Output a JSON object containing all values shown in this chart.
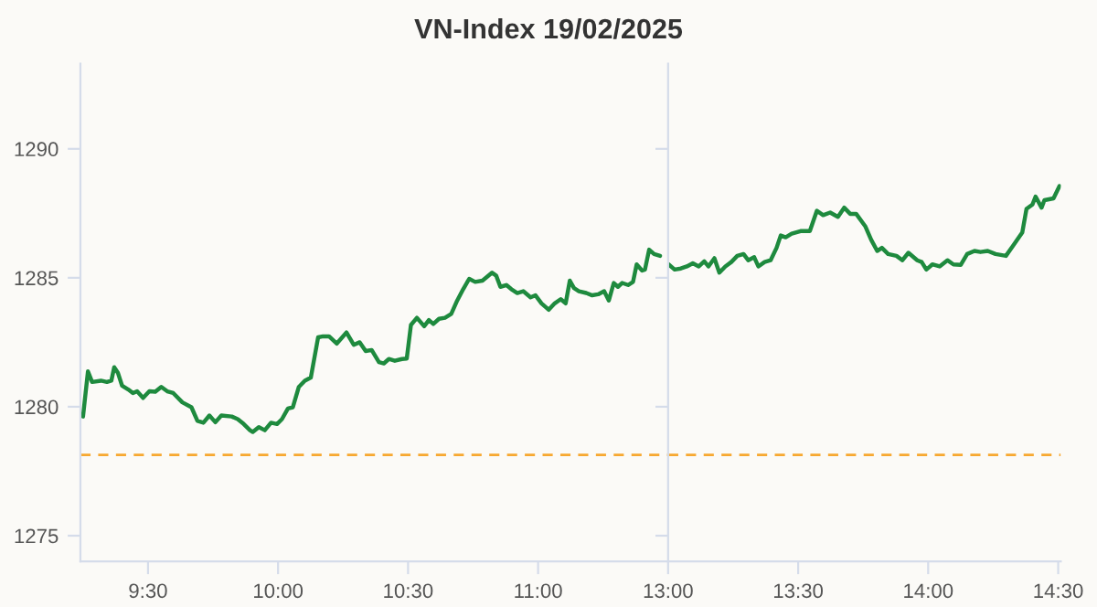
{
  "chart_data": [
    {
      "type": "line",
      "title": "VN-Index 19/02/2025",
      "xlim": [
        9.24,
        11.5
      ],
      "xticks": [
        {
          "value": 9.5,
          "label": "9:30"
        },
        {
          "value": 10,
          "label": "10:00"
        },
        {
          "value": 10.5,
          "label": "10:30"
        },
        {
          "value": 11,
          "label": "11:00"
        }
      ],
      "ylim": [
        1274,
        1293.3
      ],
      "yticks": [
        1275,
        1280,
        1285,
        1290
      ],
      "grid": false,
      "legend": false,
      "marker": "none",
      "line_style": "solid",
      "ref_lines": [
        {
          "axis": "y",
          "value": 1278.13,
          "color": "#f7a830",
          "line_style": "dashed"
        }
      ],
      "series": [
        {
          "color": "#1e8a3e",
          "x": [
            9.25,
            9.269,
            9.285,
            9.319,
            9.342,
            9.359,
            9.37,
            9.384,
            9.4,
            9.424,
            9.442,
            9.458,
            9.481,
            9.505,
            9.528,
            9.551,
            9.574,
            9.597,
            9.632,
            9.667,
            9.69,
            9.713,
            9.736,
            9.759,
            9.782,
            9.822,
            9.845,
            9.868,
            9.892,
            9.903,
            9.926,
            9.949,
            9.973,
            9.996,
            10.015,
            10.038,
            10.057,
            10.08,
            10.103,
            10.126,
            10.154,
            10.173,
            10.196,
            10.226,
            10.263,
            10.291,
            10.314,
            10.337,
            10.36,
            10.388,
            10.407,
            10.426,
            10.449,
            10.476,
            10.495,
            10.511,
            10.534,
            10.562,
            10.58,
            10.597,
            10.619,
            10.642,
            10.666,
            10.689,
            10.712,
            10.735,
            10.758,
            10.786,
            10.804,
            10.823,
            10.839,
            10.855,
            10.878,
            10.897,
            10.92,
            10.943,
            10.971,
            10.99,
            11.013,
            11.041,
            11.064,
            11.087,
            11.106,
            11.122,
            11.138,
            11.157,
            11.185,
            11.208,
            11.231,
            11.254,
            11.272,
            11.291,
            11.307,
            11.323,
            11.346,
            11.365,
            11.379,
            11.4,
            11.411,
            11.427,
            11.446,
            11.469
          ],
          "values": [
            1279.62,
            1281.37,
            1280.96,
            1281.01,
            1280.96,
            1281.01,
            1281.53,
            1281.32,
            1280.82,
            1280.67,
            1280.53,
            1280.6,
            1280.34,
            1280.6,
            1280.58,
            1280.77,
            1280.6,
            1280.53,
            1280.17,
            1279.98,
            1279.45,
            1279.38,
            1279.66,
            1279.4,
            1279.66,
            1279.62,
            1279.52,
            1279.33,
            1279.09,
            1279.02,
            1279.21,
            1279.09,
            1279.38,
            1279.33,
            1279.52,
            1279.93,
            1279.98,
            1280.77,
            1281.01,
            1281.13,
            1282.69,
            1282.73,
            1282.73,
            1282.45,
            1282.88,
            1282.4,
            1282.5,
            1282.16,
            1282.2,
            1281.73,
            1281.68,
            1281.85,
            1281.78,
            1281.85,
            1281.87,
            1283.17,
            1283.45,
            1283.12,
            1283.36,
            1283.21,
            1283.41,
            1283.45,
            1283.6,
            1284.12,
            1284.56,
            1284.96,
            1284.84,
            1284.89,
            1285.04,
            1285.2,
            1285.08,
            1284.65,
            1284.72,
            1284.56,
            1284.41,
            1284.48,
            1284.24,
            1284.32,
            1284.01,
            1283.76,
            1284.01,
            1284.17,
            1284.01,
            1284.89,
            1284.6,
            1284.48,
            1284.41,
            1284.32,
            1284.36,
            1284.48,
            1284.12,
            1284.8,
            1284.65,
            1284.8,
            1284.72,
            1284.84,
            1285.52,
            1285.28,
            1285.32,
            1286.09,
            1285.92,
            1285.85
          ]
        }
      ]
    },
    {
      "type": "line",
      "xlim": [
        13,
        14.51
      ],
      "xticks": [
        {
          "value": 13,
          "label": "13:00"
        },
        {
          "value": 13.5,
          "label": "13:30"
        },
        {
          "value": 14,
          "label": "14:00"
        },
        {
          "value": 14.5,
          "label": "14:30"
        }
      ],
      "ylim": [
        1274,
        1293.3
      ],
      "yticks": [
        1275,
        1280,
        1285,
        1290
      ],
      "tick_labels": "x",
      "grid": false,
      "legend": false,
      "marker": "none",
      "line_style": "solid",
      "ref_lines": [
        {
          "axis": "y",
          "value": 1278.13,
          "color": "#f7a830",
          "line_style": "dashed"
        }
      ],
      "series": [
        {
          "color": "#1e8a3e",
          "x": [
            13.002,
            13.025,
            13.049,
            13.072,
            13.095,
            13.118,
            13.139,
            13.155,
            13.178,
            13.197,
            13.22,
            13.243,
            13.266,
            13.29,
            13.308,
            13.331,
            13.347,
            13.371,
            13.394,
            13.417,
            13.433,
            13.452,
            13.475,
            13.509,
            13.545,
            13.572,
            13.596,
            13.623,
            13.653,
            13.677,
            13.7,
            13.723,
            13.758,
            13.781,
            13.804,
            13.822,
            13.846,
            13.878,
            13.901,
            13.924,
            13.958,
            13.975,
            13.993,
            14.016,
            14.044,
            14.074,
            14.097,
            14.125,
            14.15,
            14.178,
            14.201,
            14.229,
            14.259,
            14.299,
            14.329,
            14.362,
            14.378,
            14.401,
            14.413,
            14.436,
            14.447,
            14.482,
            14.505
          ],
          "values": [
            1285.52,
            1285.32,
            1285.36,
            1285.44,
            1285.56,
            1285.44,
            1285.64,
            1285.44,
            1285.76,
            1285.2,
            1285.44,
            1285.61,
            1285.85,
            1285.92,
            1285.68,
            1285.8,
            1285.44,
            1285.61,
            1285.68,
            1286.16,
            1286.64,
            1286.57,
            1286.71,
            1286.81,
            1286.81,
            1287.6,
            1287.43,
            1287.53,
            1287.36,
            1287.72,
            1287.48,
            1287.48,
            1287.0,
            1286.47,
            1286.04,
            1286.16,
            1285.92,
            1285.85,
            1285.68,
            1285.97,
            1285.68,
            1285.61,
            1285.32,
            1285.52,
            1285.44,
            1285.68,
            1285.52,
            1285.5,
            1285.92,
            1286.04,
            1286.0,
            1286.04,
            1285.92,
            1285.85,
            1286.28,
            1286.76,
            1287.67,
            1287.84,
            1288.15,
            1287.72,
            1288.01,
            1288.08,
            1288.56
          ]
        }
      ]
    }
  ]
}
